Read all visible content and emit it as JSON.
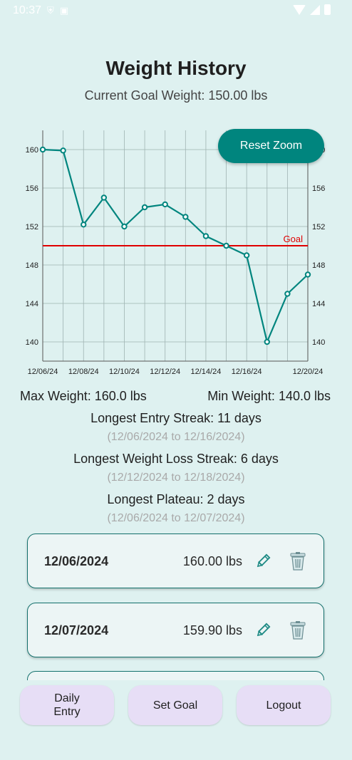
{
  "status_bar": {
    "time": "10:37"
  },
  "header": {
    "title": "Weight History",
    "subtitle": "Current Goal Weight: 150.00 lbs"
  },
  "chart": {
    "reset_zoom_label": "Reset Zoom"
  },
  "chart_data": {
    "type": "line",
    "x": [
      "12/06/24",
      "12/07/24",
      "12/08/24",
      "12/09/24",
      "12/10/24",
      "12/11/24",
      "12/12/24",
      "12/13/24",
      "12/14/24",
      "12/15/24",
      "12/16/24",
      "12/18/24",
      "12/19/24",
      "12/20/24"
    ],
    "series": [
      {
        "values": [
          160.0,
          159.9,
          152.2,
          155.0,
          152.0,
          154.0,
          154.3,
          153.0,
          151.0,
          150.0,
          149.0,
          140.0,
          145.0,
          147.0
        ]
      }
    ],
    "x_tick_labels": [
      "12/06/24",
      "12/08/24",
      "12/10/24",
      "12/12/24",
      "12/14/24",
      "12/16/24",
      "12/20/24"
    ],
    "y_ticks": [
      "140",
      "144",
      "148",
      "152",
      "156",
      "160"
    ],
    "ylim": [
      138,
      162
    ],
    "goal_line": {
      "value": 150,
      "label": "Goal",
      "color": "#e00000"
    },
    "line_color": "#00857e",
    "grid": true,
    "right_axis": true
  },
  "stats": {
    "max_weight": "Max Weight: 160.0 lbs",
    "min_weight": "Min Weight: 140.0 lbs",
    "entry_streak": "Longest Entry Streak: 11 days",
    "entry_streak_range": "(12/06/2024 to 12/16/2024)",
    "loss_streak": "Longest Weight Loss Streak: 6 days",
    "loss_streak_range": "(12/12/2024 to 12/18/2024)",
    "plateau": "Longest Plateau: 2 days",
    "plateau_range": "(12/06/2024 to 12/07/2024)"
  },
  "entries": [
    {
      "date": "12/06/2024",
      "weight": "160.00 lbs",
      "edit_icon": "pencil-icon",
      "delete_icon": "trash-icon"
    },
    {
      "date": "12/07/2024",
      "weight": "159.90 lbs",
      "edit_icon": "pencil-icon",
      "delete_icon": "trash-icon"
    }
  ],
  "bottom_nav": {
    "daily_entry": "Daily\nEntry",
    "set_goal": "Set Goal",
    "logout": "Logout"
  },
  "colors": {
    "background": "#def1f0",
    "accent": "#00857e",
    "nav_button": "#e7def6"
  }
}
